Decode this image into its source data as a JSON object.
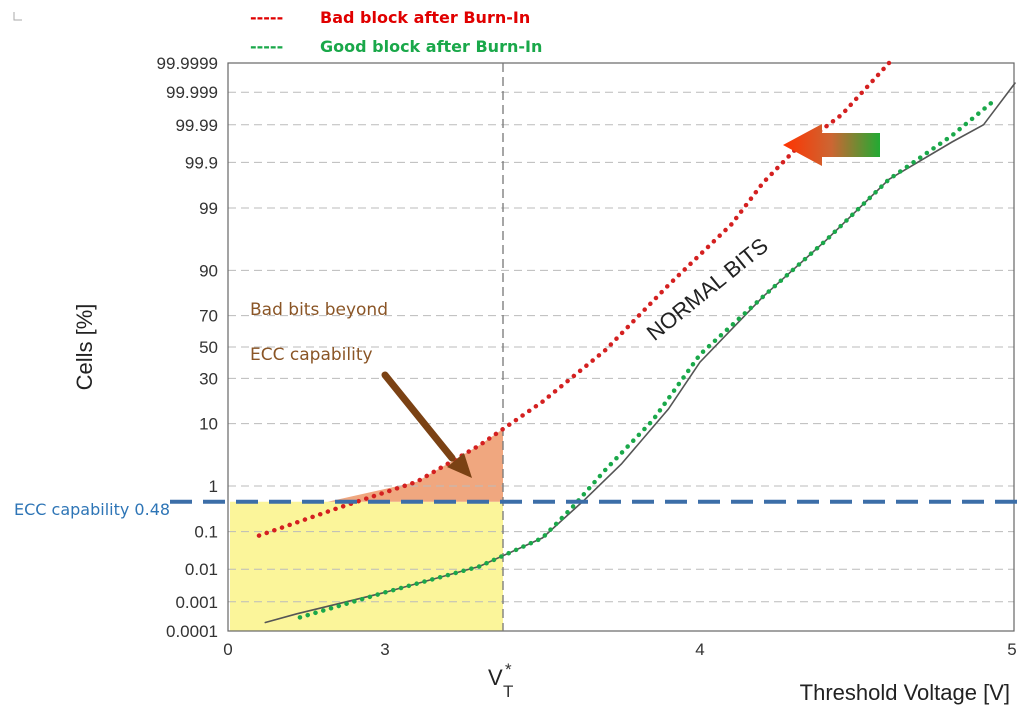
{
  "chart_data": {
    "type": "line",
    "xlabel": "Threshold Voltage [V]",
    "ylabel": "Cells [%]",
    "xlim": [
      2.5,
      5
    ],
    "x_ticks": [
      "0",
      "3",
      "4",
      "5"
    ],
    "vt_label": {
      "main": "V",
      "sub": "T",
      "sup": "*"
    },
    "y_ticks": [
      "99.9999",
      "99.999",
      "99.99",
      "99.9",
      "99",
      "90",
      "70",
      "50",
      "30",
      "10",
      "1",
      "0.1",
      "0.01",
      "0.001",
      "0.0001"
    ],
    "y_scale": "normal-probability",
    "grid": true,
    "legend": [
      {
        "dash": "-----",
        "label": "Bad block after Burn-In",
        "color": "#e00000"
      },
      {
        "dash": "-----",
        "label": "Good block after Burn-In",
        "color": "#1aa84a"
      }
    ],
    "series": [
      {
        "name": "Bad block after Burn-In",
        "color": "#d42020",
        "style": "dotted",
        "x": [
          2.6,
          2.85,
          3.1,
          3.3,
          3.5,
          3.7,
          3.9,
          4.1,
          4.2,
          4.3,
          4.45,
          4.6
        ],
        "y": [
          0.08,
          0.35,
          1.2,
          5,
          18,
          48,
          85,
          98,
          99.7,
          99.95,
          99.995,
          99.9999
        ]
      },
      {
        "name": "Good block after Burn-In",
        "color": "#1aa84a",
        "style": "dotted",
        "x": [
          2.73,
          3.0,
          3.3,
          3.5,
          3.6,
          3.7,
          3.85,
          4.0,
          4.2,
          4.4,
          4.6,
          4.8,
          4.93
        ],
        "y": [
          0.0003,
          0.002,
          0.012,
          0.07,
          0.4,
          2.0,
          11,
          45,
          80,
          96.3,
          99.75,
          99.98,
          99.998
        ]
      },
      {
        "name": "",
        "color": "#555555",
        "style": "solid",
        "x": [
          2.62,
          2.72,
          3.0,
          3.3,
          3.5,
          3.63,
          3.75,
          3.9,
          4.0,
          4.2,
          4.4,
          4.6,
          4.8,
          4.9,
          5.0
        ],
        "y": [
          0.0002,
          0.0004,
          0.002,
          0.012,
          0.07,
          0.5,
          2.5,
          15,
          40,
          80,
          96.3,
          99.75,
          99.97,
          99.99,
          99.9995
        ]
      }
    ],
    "ecc_line": {
      "value": 0.48,
      "label": "ECC capability 0.48",
      "color": "#3c6ea8"
    },
    "annotations": {
      "bad_bits_line1": "Bad bits beyond",
      "bad_bits_line2": "ECC capability",
      "normal_bits": "NORMAL BITS"
    },
    "colors": {
      "yellow_region": "#fbf59a",
      "bad_region": "#f0a77f",
      "arrow_brown": "#7b4214",
      "arrow_red": "#ff3300",
      "arrow_green": "#22aa33"
    }
  }
}
